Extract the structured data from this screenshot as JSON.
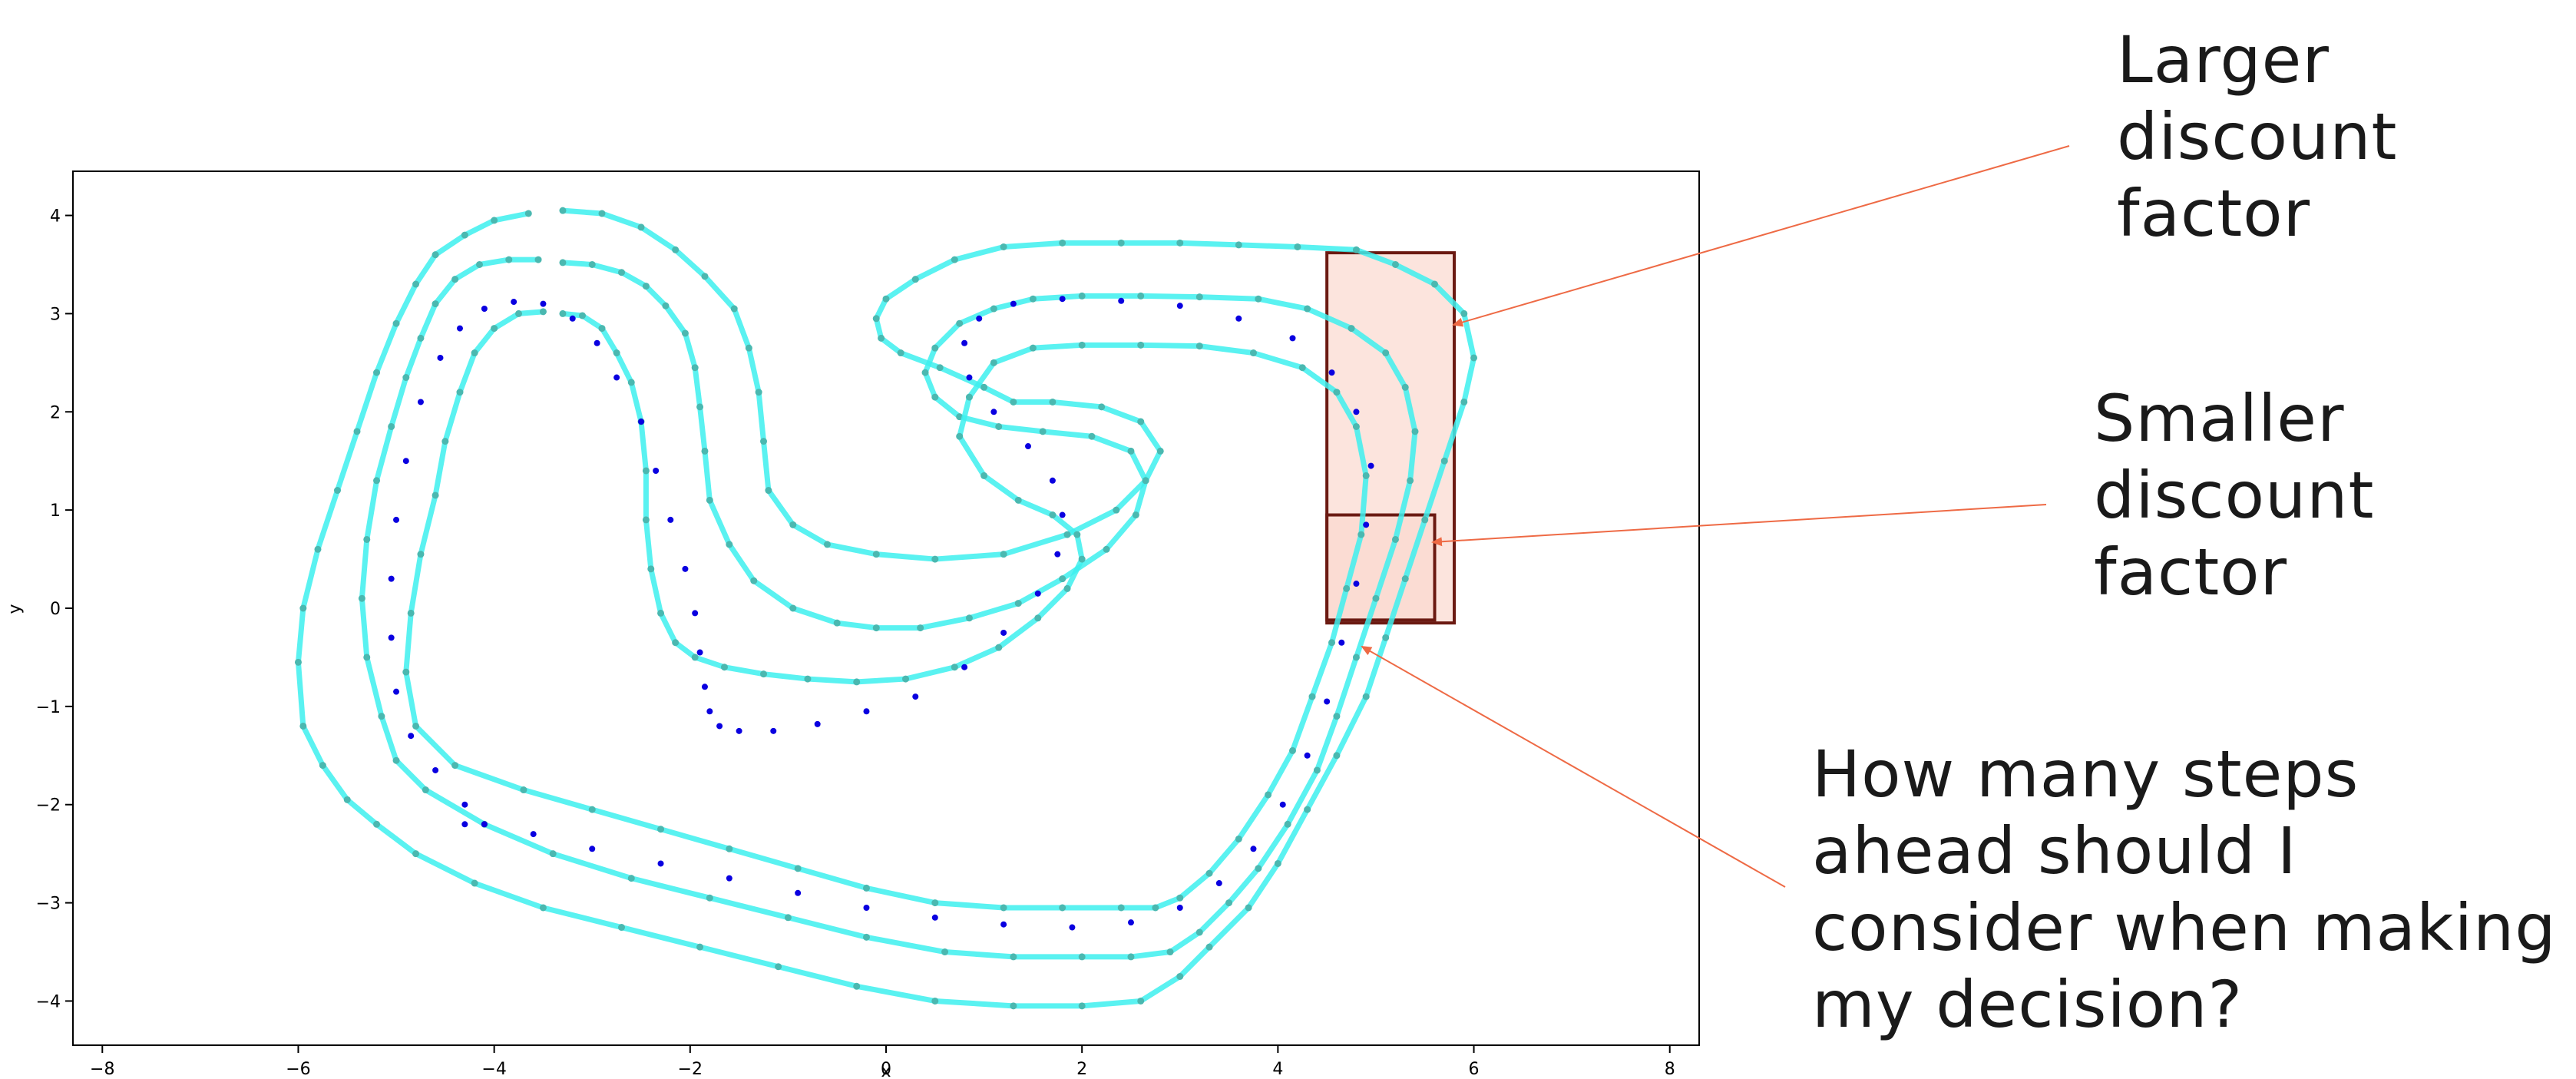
{
  "chart_data": {
    "type": "scatter",
    "xlabel": "x",
    "ylabel": "y",
    "xlim": [
      -8.3,
      8.3
    ],
    "ylim": [
      -4.45,
      4.45
    ],
    "xticks": [
      -8,
      -6,
      -4,
      -2,
      0,
      2,
      4,
      6,
      8
    ],
    "yticks": [
      -4,
      -3,
      -2,
      -1,
      0,
      1,
      2,
      3,
      4
    ],
    "grid": false,
    "colors": {
      "track": "#3df0ee",
      "track_points": "#4ab8b0",
      "trajectory": "#0a00e0",
      "box_edge": "#6b1a12",
      "box_fill": "#fbd9cf",
      "arrow": "#ee6a45"
    },
    "series": [
      {
        "role": "track-outer",
        "x": [
          -3.3,
          -2.9,
          -2.5,
          -2.15,
          -1.85,
          -1.55,
          -1.4,
          -1.3,
          -1.25,
          -1.2,
          -0.95,
          -0.6,
          -0.1,
          0.5,
          1.2,
          1.85,
          2.35,
          2.65,
          2.8,
          2.6,
          2.2,
          1.7,
          1.3,
          1.0,
          0.55,
          0.15,
          -0.05,
          -0.1,
          0.0,
          0.3,
          0.7,
          1.2,
          1.8,
          2.4,
          3.0,
          3.6,
          4.2,
          4.8,
          5.2,
          5.6,
          5.9,
          6.0,
          5.9,
          5.7,
          5.5,
          5.3,
          5.1,
          4.9,
          4.6,
          4.3,
          4.0,
          3.7,
          3.3,
          3.0,
          2.6,
          2.0,
          1.3,
          0.5,
          -0.3,
          -1.1,
          -1.9,
          -2.7,
          -3.5,
          -4.2,
          -4.8,
          -5.2,
          -5.5,
          -5.75,
          -5.95,
          -6.0,
          -5.95,
          -5.8,
          -5.6,
          -5.4,
          -5.2,
          -5.0,
          -4.8,
          -4.6,
          -4.3,
          -4.0,
          -3.65
        ],
        "y": [
          4.05,
          4.02,
          3.88,
          3.65,
          3.38,
          3.05,
          2.65,
          2.2,
          1.7,
          1.2,
          0.85,
          0.65,
          0.55,
          0.5,
          0.55,
          0.75,
          1.0,
          1.3,
          1.6,
          1.9,
          2.05,
          2.1,
          2.1,
          2.25,
          2.45,
          2.6,
          2.75,
          2.95,
          3.15,
          3.35,
          3.55,
          3.68,
          3.72,
          3.72,
          3.72,
          3.7,
          3.68,
          3.65,
          3.5,
          3.3,
          3.0,
          2.55,
          2.1,
          1.5,
          0.9,
          0.3,
          -0.3,
          -0.9,
          -1.5,
          -2.05,
          -2.6,
          -3.05,
          -3.45,
          -3.75,
          -4.0,
          -4.05,
          -4.05,
          -4.0,
          -3.85,
          -3.65,
          -3.45,
          -3.25,
          -3.05,
          -2.8,
          -2.5,
          -2.2,
          -1.95,
          -1.6,
          -1.2,
          -0.55,
          0.0,
          0.6,
          1.2,
          1.8,
          2.4,
          2.9,
          3.3,
          3.6,
          3.8,
          3.95,
          4.02
        ]
      },
      {
        "role": "track-center",
        "x": [
          -3.3,
          -3.0,
          -2.7,
          -2.45,
          -2.25,
          -2.05,
          -1.95,
          -1.9,
          -1.85,
          -1.8,
          -1.6,
          -1.35,
          -0.95,
          -0.5,
          -0.1,
          0.35,
          0.85,
          1.35,
          1.8,
          2.25,
          2.55,
          2.65,
          2.5,
          2.1,
          1.6,
          1.15,
          0.75,
          0.5,
          0.4,
          0.5,
          0.75,
          1.1,
          1.5,
          2.0,
          2.6,
          3.2,
          3.8,
          4.3,
          4.75,
          5.1,
          5.3,
          5.4,
          5.35,
          5.2,
          5.0,
          4.8,
          4.6,
          4.4,
          4.1,
          3.8,
          3.5,
          3.2,
          2.9,
          2.5,
          2.0,
          1.3,
          0.6,
          -0.2,
          -1.0,
          -1.8,
          -2.6,
          -3.4,
          -4.1,
          -4.7,
          -5.0,
          -5.15,
          -5.3,
          -5.35,
          -5.3,
          -5.2,
          -5.05,
          -4.9,
          -4.75,
          -4.6,
          -4.4,
          -4.15,
          -3.85,
          -3.55
        ],
        "y": [
          3.52,
          3.5,
          3.42,
          3.28,
          3.08,
          2.8,
          2.45,
          2.05,
          1.6,
          1.1,
          0.65,
          0.28,
          0.0,
          -0.15,
          -0.2,
          -0.2,
          -0.1,
          0.05,
          0.3,
          0.6,
          0.95,
          1.3,
          1.6,
          1.75,
          1.8,
          1.85,
          1.95,
          2.15,
          2.4,
          2.65,
          2.9,
          3.05,
          3.15,
          3.18,
          3.18,
          3.17,
          3.15,
          3.05,
          2.85,
          2.6,
          2.25,
          1.8,
          1.3,
          0.7,
          0.1,
          -0.5,
          -1.1,
          -1.65,
          -2.2,
          -2.65,
          -3.0,
          -3.3,
          -3.5,
          -3.55,
          -3.55,
          -3.55,
          -3.5,
          -3.35,
          -3.15,
          -2.95,
          -2.75,
          -2.5,
          -2.2,
          -1.85,
          -1.55,
          -1.1,
          -0.5,
          0.1,
          0.7,
          1.3,
          1.85,
          2.35,
          2.75,
          3.1,
          3.35,
          3.5,
          3.55,
          3.55
        ]
      },
      {
        "role": "track-inner",
        "x": [
          -3.3,
          -3.1,
          -2.9,
          -2.75,
          -2.6,
          -2.5,
          -2.45,
          -2.45,
          -2.4,
          -2.3,
          -2.15,
          -1.95,
          -1.65,
          -1.25,
          -0.8,
          -0.3,
          0.2,
          0.7,
          1.15,
          1.55,
          1.85,
          2.0,
          1.95,
          1.7,
          1.35,
          1.0,
          0.75,
          0.85,
          1.1,
          1.5,
          2.0,
          2.6,
          3.2,
          3.75,
          4.25,
          4.6,
          4.8,
          4.9,
          4.85,
          4.7,
          4.55,
          4.35,
          4.15,
          3.9,
          3.6,
          3.3,
          3.0,
          2.75,
          2.4,
          1.8,
          1.2,
          0.5,
          -0.2,
          -0.9,
          -1.6,
          -2.3,
          -3.0,
          -3.7,
          -4.4,
          -4.8,
          -4.9,
          -4.85,
          -4.75,
          -4.6,
          -4.5,
          -4.35,
          -4.2,
          -4.0,
          -3.75,
          -3.5
        ],
        "y": [
          3.0,
          2.98,
          2.85,
          2.6,
          2.3,
          1.9,
          1.4,
          0.9,
          0.4,
          -0.05,
          -0.35,
          -0.5,
          -0.6,
          -0.67,
          -0.72,
          -0.75,
          -0.72,
          -0.6,
          -0.4,
          -0.1,
          0.2,
          0.5,
          0.75,
          0.95,
          1.1,
          1.35,
          1.75,
          2.15,
          2.5,
          2.65,
          2.68,
          2.68,
          2.67,
          2.6,
          2.45,
          2.2,
          1.85,
          1.35,
          0.75,
          0.2,
          -0.35,
          -0.9,
          -1.45,
          -1.9,
          -2.35,
          -2.7,
          -2.95,
          -3.05,
          -3.05,
          -3.05,
          -3.05,
          -3.0,
          -2.85,
          -2.65,
          -2.45,
          -2.25,
          -2.05,
          -1.85,
          -1.6,
          -1.2,
          -0.65,
          -0.05,
          0.55,
          1.15,
          1.7,
          2.2,
          2.6,
          2.85,
          3.0,
          3.02
        ]
      },
      {
        "role": "trajectory",
        "x": [
          -4.3,
          -4.6,
          -4.85,
          -5.0,
          -5.05,
          -5.05,
          -5.0,
          -4.9,
          -4.75,
          -4.55,
          -4.35,
          -4.1,
          -3.8,
          -3.5,
          -3.2,
          -2.95,
          -2.75,
          -2.5,
          -2.35,
          -2.2,
          -2.05,
          -1.95,
          -1.9,
          -1.85,
          -1.8,
          -1.7,
          -1.5,
          -1.15,
          -0.7,
          -0.2,
          0.3,
          0.8,
          1.2,
          1.55,
          1.75,
          1.8,
          1.7,
          1.45,
          1.1,
          0.85,
          0.8,
          0.95,
          1.3,
          1.8,
          2.4,
          3.0,
          3.6,
          4.15,
          4.55,
          4.8,
          4.95,
          4.9,
          4.8,
          4.65,
          4.5,
          4.3,
          4.05,
          3.75,
          3.4,
          3.0,
          2.5,
          1.9,
          1.2,
          0.5,
          -0.2,
          -0.9,
          -1.6,
          -2.3,
          -3.0,
          -3.6,
          -4.1,
          -4.3
        ],
        "y": [
          -2.0,
          -1.65,
          -1.3,
          -0.85,
          -0.3,
          0.3,
          0.9,
          1.5,
          2.1,
          2.55,
          2.85,
          3.05,
          3.12,
          3.1,
          2.95,
          2.7,
          2.35,
          1.9,
          1.4,
          0.9,
          0.4,
          -0.05,
          -0.45,
          -0.8,
          -1.05,
          -1.2,
          -1.25,
          -1.25,
          -1.18,
          -1.05,
          -0.9,
          -0.6,
          -0.25,
          0.15,
          0.55,
          0.95,
          1.3,
          1.65,
          2.0,
          2.35,
          2.7,
          2.95,
          3.1,
          3.15,
          3.13,
          3.08,
          2.95,
          2.75,
          2.4,
          2.0,
          1.45,
          0.85,
          0.25,
          -0.35,
          -0.95,
          -1.5,
          -2.0,
          -2.45,
          -2.8,
          -3.05,
          -3.2,
          -3.25,
          -3.22,
          -3.15,
          -3.05,
          -2.9,
          -2.75,
          -2.6,
          -2.45,
          -2.3,
          -2.2,
          -2.2
        ]
      }
    ],
    "boxes": [
      {
        "x0": 4.5,
        "x1": 5.8,
        "y0": -0.15,
        "y1": 3.62
      },
      {
        "x0": 4.5,
        "x1": 5.6,
        "y0": -0.12,
        "y1": 0.95
      }
    ]
  },
  "annotations": {
    "larger": "Larger\ndiscount\nfactor",
    "smaller": "Smaller\ndiscount\nfactor",
    "question": "How many steps\nahead should I\nconsider when making\nmy decision?"
  }
}
